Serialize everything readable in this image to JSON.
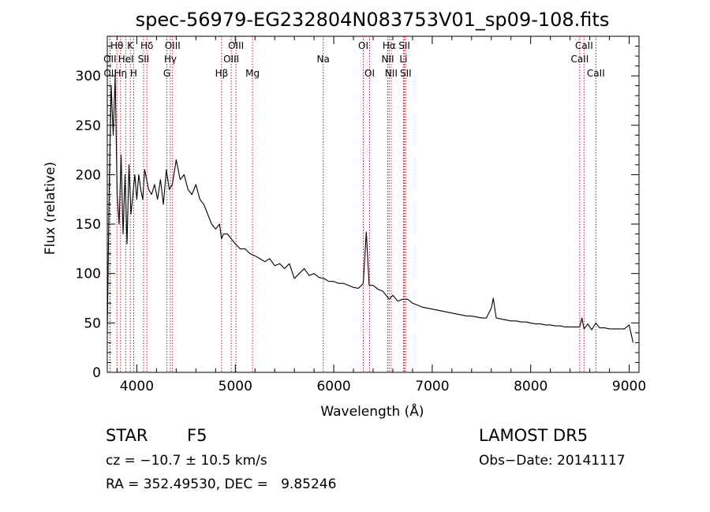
{
  "chart_data": {
    "type": "line",
    "title": "spec-56979-EG232804N083753V01_sp09-108.fits",
    "xlabel": "Wavelength (Å)",
    "ylabel": "Flux (relative)",
    "xlim": [
      3700,
      9100
    ],
    "ylim": [
      0,
      340
    ],
    "xticks": [
      4000,
      5000,
      6000,
      7000,
      8000,
      9000
    ],
    "yticks": [
      0,
      50,
      100,
      150,
      200,
      250,
      300
    ],
    "grid": false,
    "series": [
      {
        "x": [
          3700,
          3720,
          3740,
          3760,
          3780,
          3800,
          3820,
          3840,
          3860,
          3880,
          3900,
          3920,
          3940,
          3960,
          3980,
          4000,
          4020,
          4040,
          4060,
          4080,
          4100,
          4120,
          4150,
          4180,
          4210,
          4240,
          4270,
          4300,
          4330,
          4360,
          4400,
          4440,
          4480,
          4520,
          4560,
          4600,
          4640,
          4680,
          4720,
          4760,
          4800,
          4840,
          4860,
          4880,
          4920,
          4960,
          5000,
          5050,
          5100,
          5150,
          5200,
          5250,
          5300,
          5350,
          5400,
          5450,
          5500,
          5550,
          5600,
          5650,
          5700,
          5750,
          5800,
          5850,
          5900,
          5950,
          6000,
          6050,
          6100,
          6150,
          6200,
          6250,
          6300,
          6330,
          6360,
          6400,
          6450,
          6500,
          6563,
          6600,
          6650,
          6700,
          6750,
          6800,
          6850,
          6900,
          6950,
          7000,
          7050,
          7100,
          7150,
          7200,
          7250,
          7300,
          7350,
          7400,
          7450,
          7500,
          7550,
          7600,
          7620,
          7650,
          7700,
          7750,
          7800,
          7850,
          7900,
          7950,
          8000,
          8050,
          8100,
          8150,
          8200,
          8250,
          8300,
          8350,
          8400,
          8450,
          8498,
          8520,
          8542,
          8580,
          8620,
          8662,
          8700,
          8750,
          8800,
          8850,
          8900,
          8950,
          9000,
          9040
        ],
        "y": [
          40,
          190,
          290,
          240,
          300,
          180,
          150,
          220,
          140,
          200,
          130,
          210,
          160,
          180,
          200,
          175,
          200,
          185,
          175,
          205,
          195,
          185,
          180,
          190,
          175,
          195,
          170,
          205,
          185,
          190,
          215,
          195,
          200,
          185,
          180,
          190,
          175,
          170,
          160,
          150,
          145,
          150,
          135,
          140,
          140,
          135,
          130,
          125,
          125,
          120,
          118,
          115,
          112,
          115,
          108,
          110,
          105,
          110,
          95,
          100,
          105,
          98,
          100,
          96,
          95,
          92,
          92,
          90,
          90,
          88,
          86,
          85,
          90,
          142,
          88,
          88,
          84,
          82,
          74,
          78,
          72,
          74,
          74,
          70,
          68,
          66,
          65,
          64,
          63,
          62,
          61,
          60,
          59,
          58,
          57,
          57,
          56,
          55,
          55,
          65,
          75,
          55,
          54,
          53,
          52,
          52,
          51,
          51,
          50,
          49,
          49,
          48,
          48,
          47,
          47,
          46,
          46,
          46,
          46,
          55,
          44,
          49,
          43,
          50,
          45,
          45,
          44,
          44,
          44,
          44,
          48,
          30
        ]
      }
    ],
    "lines": [
      {
        "label": "Hθ",
        "x": 3798,
        "row": 1
      },
      {
        "label": "OII",
        "x": 3727,
        "row": 2
      },
      {
        "label": "OII",
        "x": 3729,
        "row": 3
      },
      {
        "label": "Hη",
        "x": 3835,
        "row": 3
      },
      {
        "label": "HeI",
        "x": 3889,
        "row": 2
      },
      {
        "label": "K",
        "x": 3934,
        "row": 1
      },
      {
        "label": "H",
        "x": 3968,
        "row": 3
      },
      {
        "label": "SII",
        "x": 4068,
        "row": 2
      },
      {
        "label": "Hδ",
        "x": 4102,
        "row": 1
      },
      {
        "label": "OIII",
        "x": 4363,
        "row": 1
      },
      {
        "label": "Hγ",
        "x": 4340,
        "row": 2
      },
      {
        "label": "G",
        "x": 4305,
        "row": 3
      },
      {
        "label": "Hβ",
        "x": 4861,
        "row": 3
      },
      {
        "label": "OIII",
        "x": 4959,
        "row": 2
      },
      {
        "label": "OIII",
        "x": 5007,
        "row": 1
      },
      {
        "label": "Mg",
        "x": 5175,
        "row": 3
      },
      {
        "label": "Na",
        "x": 5893,
        "row": 2
      },
      {
        "label": "OI",
        "x": 6300,
        "row": 1
      },
      {
        "label": "OI",
        "x": 6364,
        "row": 3
      },
      {
        "label": "Hα",
        "x": 6563,
        "row": 1
      },
      {
        "label": "NII",
        "x": 6548,
        "row": 2
      },
      {
        "label": "NII",
        "x": 6583,
        "row": 3
      },
      {
        "label": "SII",
        "x": 6717,
        "row": 1
      },
      {
        "label": "Li",
        "x": 6708,
        "row": 2
      },
      {
        "label": "SII",
        "x": 6731,
        "row": 3
      },
      {
        "label": "CaII",
        "x": 8498,
        "row": 2
      },
      {
        "label": "CaII",
        "x": 8542,
        "row": 1
      },
      {
        "label": "CaII",
        "x": 8662,
        "row": 3
      }
    ]
  },
  "info": {
    "object_class": "STAR",
    "subclass": "F5",
    "survey": "LAMOST DR5",
    "cz_text": "cz = −10.7 ± 10.5 km/s",
    "obs_date": "Obs−Date: 20141117",
    "coords": "RA = 352.49530, DEC =   9.85246"
  }
}
